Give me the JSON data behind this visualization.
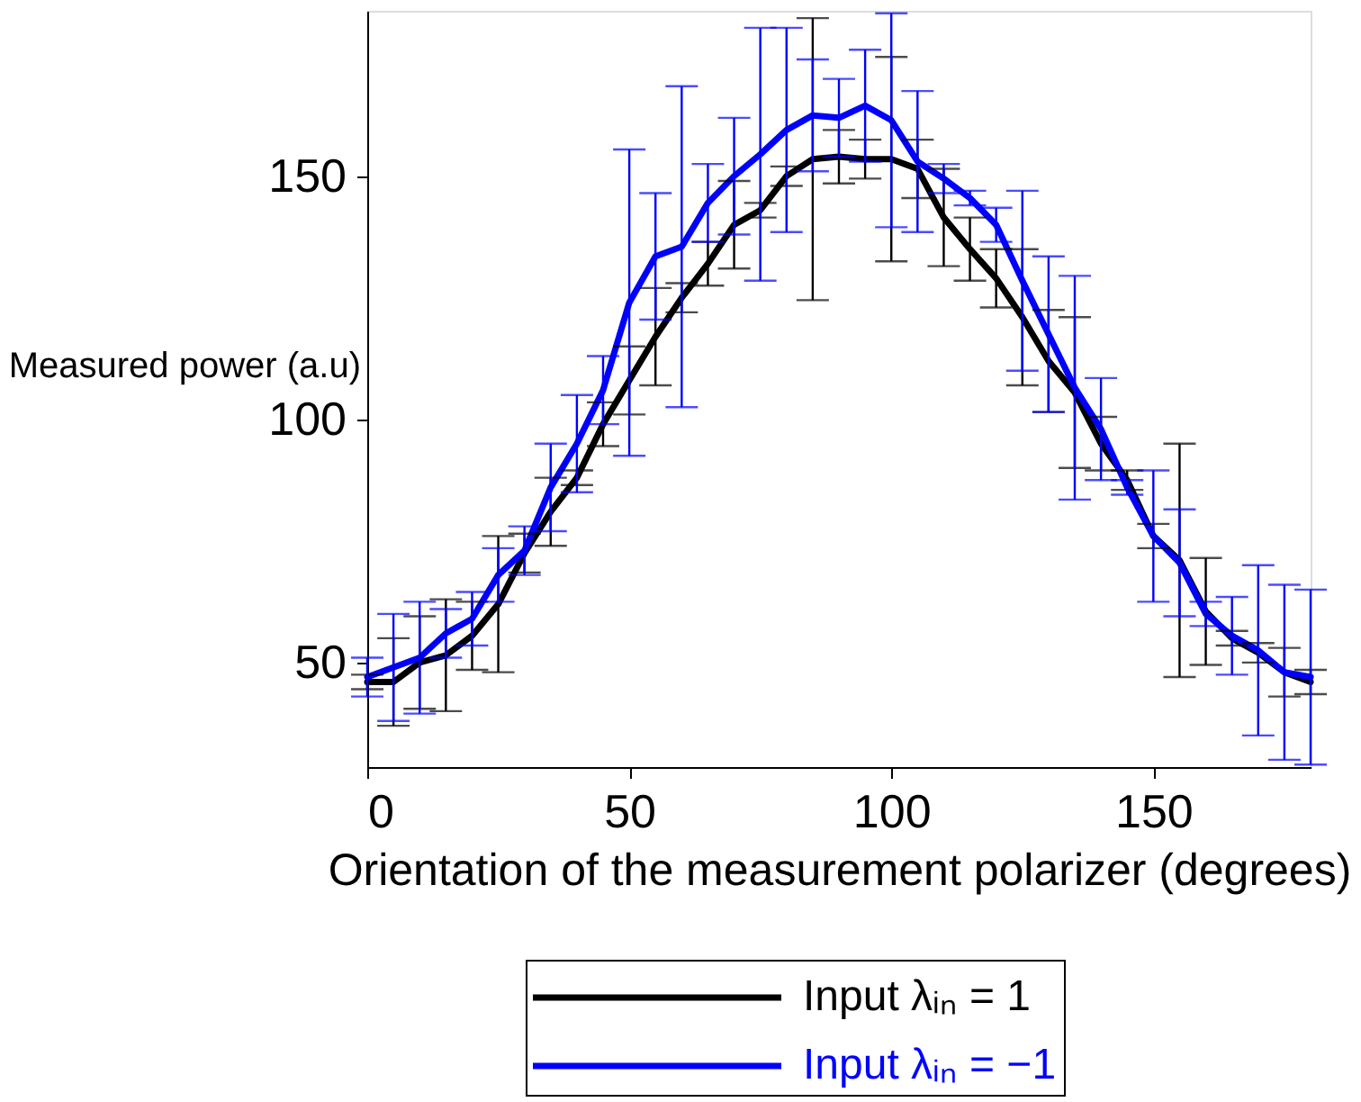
{
  "chart_data": {
    "type": "line",
    "xlabel": "Orientation of the measurement polarizer (degrees)",
    "ylabel": "Measured power (a.u)",
    "x": [
      0,
      5,
      10,
      15,
      20,
      25,
      30,
      35,
      40,
      45,
      50,
      55,
      60,
      65,
      70,
      75,
      80,
      85,
      90,
      95,
      100,
      105,
      110,
      115,
      120,
      125,
      130,
      135,
      140,
      145,
      150,
      155,
      160,
      165,
      170,
      175,
      180
    ],
    "xlim": [
      0,
      180
    ],
    "xticks": [
      0,
      50,
      100,
      150
    ],
    "ylim": [
      28.5,
      184
    ],
    "yticks": [
      50,
      100,
      150
    ],
    "legend": "bottom",
    "marker": "none",
    "line_style": "solid",
    "series": [
      {
        "name": "Input λᵢₙ = 1",
        "color": "#000000",
        "values": [
          46,
          46,
          50,
          51.5,
          55.5,
          62,
          72.5,
          81,
          88,
          99,
          108,
          117,
          125,
          132,
          140,
          143,
          150,
          153.5,
          154,
          153.5,
          153.5,
          151.5,
          141.5,
          135,
          129,
          121,
          112,
          105.5,
          95,
          87.5,
          76,
          71,
          60.5,
          55,
          52,
          48,
          46
        ],
        "errors": [
          1.5,
          9,
          9.5,
          11.5,
          7,
          14,
          4,
          7,
          1.5,
          4.5,
          7,
          10,
          3,
          4.5,
          9,
          1.5,
          2,
          29,
          5.5,
          4,
          21,
          6,
          10,
          6.5,
          6,
          14,
          10.5,
          15.5,
          5.5,
          2,
          2.5,
          24,
          11,
          1.5,
          2,
          5,
          2.5
        ]
      },
      {
        "name": "Input λᵢₙ = −1",
        "color": "#0000ff",
        "values": [
          47,
          49,
          51,
          56,
          59,
          68,
          73,
          86,
          95,
          106,
          124,
          133.5,
          135.5,
          144.5,
          150,
          154.5,
          159.5,
          162.5,
          162,
          164.5,
          161.5,
          153,
          149.5,
          145.5,
          140,
          128.5,
          117.5,
          106.5,
          98,
          86,
          76,
          70.5,
          60,
          55.5,
          52.5,
          48,
          47
        ],
        "errors": [
          4,
          11,
          11.5,
          5,
          5.5,
          5.5,
          5,
          9,
          10,
          7,
          31.5,
          13,
          33,
          8,
          12,
          26,
          21,
          11.5,
          8,
          11.5,
          22,
          14.5,
          3,
          1.5,
          3.5,
          18.5,
          16,
          23,
          10.5,
          1.5,
          13.5,
          11,
          2.5,
          8,
          17.5,
          18,
          18
        ]
      }
    ]
  }
}
